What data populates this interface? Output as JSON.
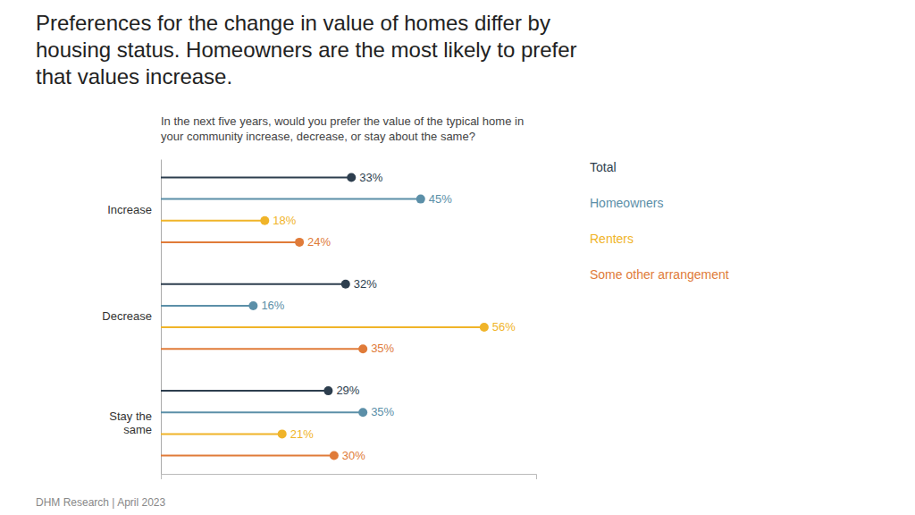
{
  "chart_data": {
    "type": "lollipop",
    "title": "Preferences for the change in value of homes differ by\nhousing status. Homeowners are the most likely to prefer\nthat values increase.",
    "subtitle": "In the next five years, would you prefer the value of the typical home in\nyour community increase, decrease, or stay about the same?",
    "annotations": [
      "DHM Research | April 2023"
    ],
    "categories": [
      "Increase",
      "Decrease",
      "Stay the\nsame"
    ],
    "series": [
      {
        "name": "Total",
        "color": "#2d3e4e",
        "values": [
          33,
          32,
          29
        ],
        "value_labels": [
          "33%",
          "32%",
          "29%"
        ]
      },
      {
        "name": "Homeowners",
        "color": "#5b8fa8",
        "values": [
          45,
          16,
          35
        ],
        "value_labels": [
          "45%",
          "16%",
          "35%"
        ]
      },
      {
        "name": "Renters",
        "color": "#f0b429",
        "values": [
          18,
          56,
          21
        ],
        "value_labels": [
          "18%",
          "56%",
          "21%"
        ]
      },
      {
        "name": "Some other arrangement",
        "color": "#e07b39",
        "values": [
          24,
          35,
          30
        ],
        "value_labels": [
          "24%",
          "35%",
          "30%"
        ]
      }
    ],
    "xlim": [
      0,
      65
    ],
    "orientation": "horizontal",
    "data_labels": true,
    "tick_labels": "y",
    "legend": "right",
    "grid": false
  }
}
